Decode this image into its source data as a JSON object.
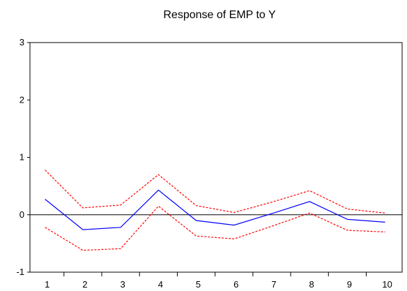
{
  "chart_data": {
    "type": "line",
    "title": "Response of EMP to Y",
    "x": [
      1,
      2,
      3,
      4,
      5,
      6,
      7,
      8,
      9,
      10
    ],
    "xlim": [
      0.6,
      10.45
    ],
    "ylim": [
      -1,
      3
    ],
    "yticks": [
      -1,
      0,
      1,
      2,
      3
    ],
    "grid": false,
    "zero_line": true,
    "series": [
      {
        "role": "response",
        "color": "#0000ff",
        "dashed": false,
        "values": [
          0.27,
          -0.26,
          -0.22,
          0.43,
          -0.1,
          -0.18,
          0.02,
          0.23,
          -0.08,
          -0.13
        ]
      },
      {
        "role": "upper-band",
        "color": "#ff0000",
        "dashed": true,
        "values": [
          0.78,
          0.12,
          0.17,
          0.7,
          0.16,
          0.04,
          0.22,
          0.42,
          0.1,
          0.03
        ]
      },
      {
        "role": "lower-band",
        "color": "#ff0000",
        "dashed": true,
        "values": [
          -0.22,
          -0.62,
          -0.59,
          0.15,
          -0.37,
          -0.42,
          -0.2,
          0.03,
          -0.27,
          -0.3
        ]
      }
    ]
  }
}
